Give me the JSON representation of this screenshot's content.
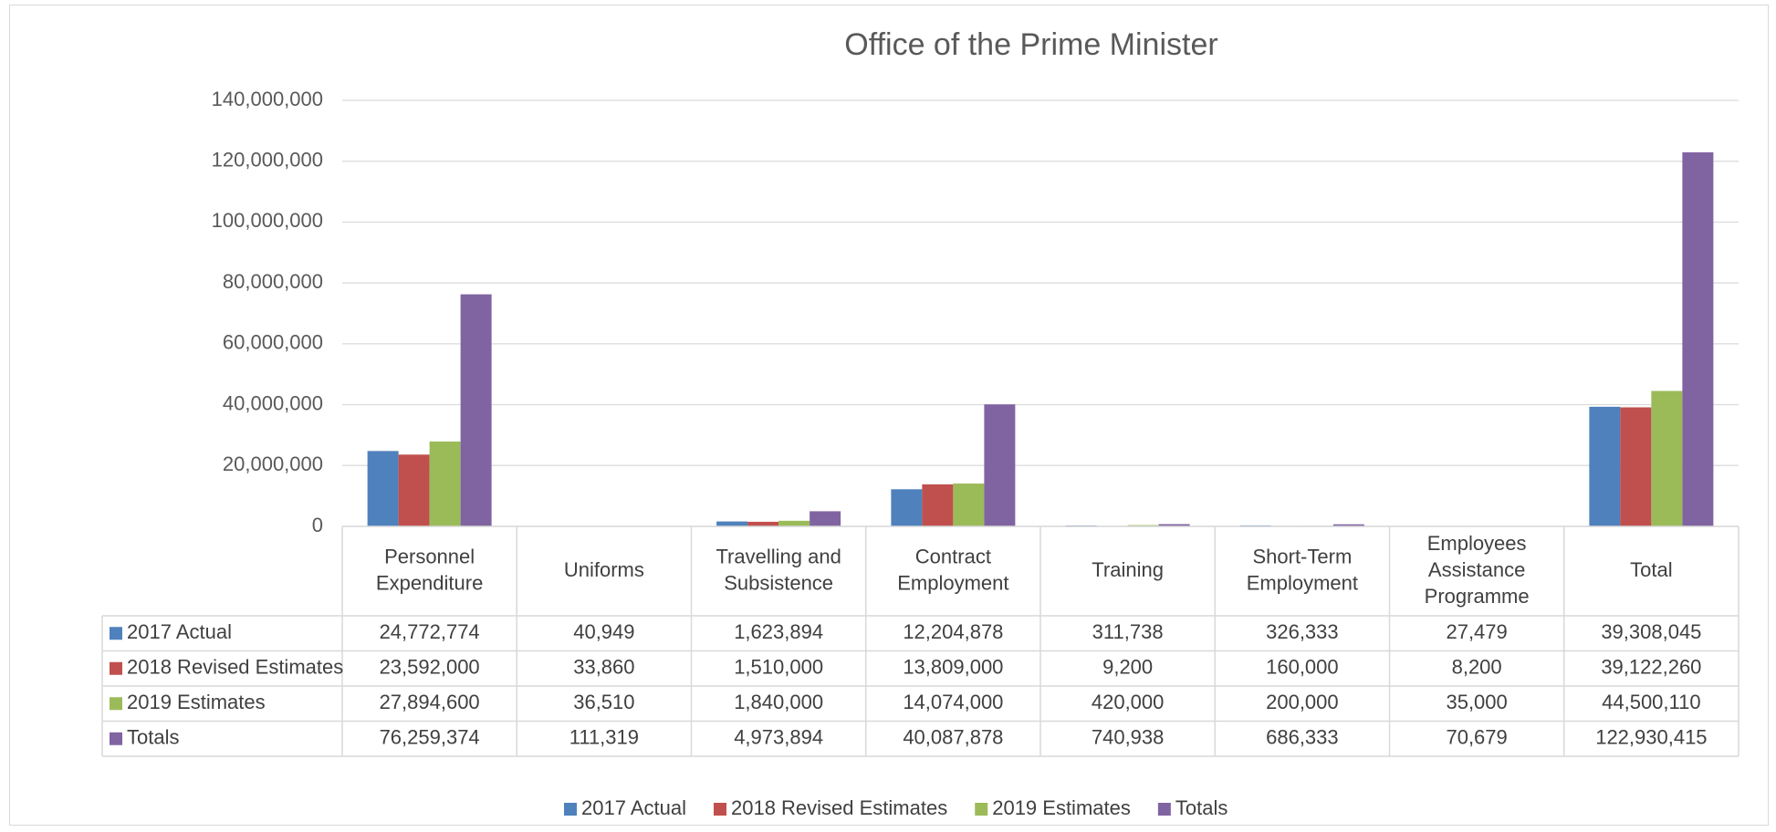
{
  "chart_data": {
    "type": "bar",
    "title": "Office of the Prime Minister",
    "categories": [
      [
        "Personnel",
        "Expenditure"
      ],
      [
        "Uniforms"
      ],
      [
        "Travelling and",
        "Subsistence"
      ],
      [
        "Contract",
        "Employment"
      ],
      [
        "Training"
      ],
      [
        "Short-Term",
        "Employment"
      ],
      [
        "Employees",
        "Assistance",
        "Programme"
      ],
      [
        "Total"
      ]
    ],
    "series": [
      {
        "name": "2017 Actual",
        "color": "#4f81bd",
        "values": [
          24772774,
          40949,
          1623894,
          12204878,
          311738,
          326333,
          27479,
          39308045
        ],
        "labels": [
          "24,772,774",
          "40,949",
          "1,623,894",
          "12,204,878",
          "311,738",
          "326,333",
          "27,479",
          "39,308,045"
        ]
      },
      {
        "name": "2018 Revised Estimates",
        "color": "#c0504d",
        "values": [
          23592000,
          33860,
          1510000,
          13809000,
          9200,
          160000,
          8200,
          39122260
        ],
        "labels": [
          "23,592,000",
          "33,860",
          "1,510,000",
          "13,809,000",
          "9,200",
          "160,000",
          "8,200",
          "39,122,260"
        ]
      },
      {
        "name": "2019 Estimates",
        "color": "#9bbb59",
        "values": [
          27894600,
          36510,
          1840000,
          14074000,
          420000,
          200000,
          35000,
          44500110
        ],
        "labels": [
          "27,894,600",
          "36,510",
          "1,840,000",
          "14,074,000",
          "420,000",
          "200,000",
          "35,000",
          "44,500,110"
        ]
      },
      {
        "name": "Totals",
        "color": "#8064a2",
        "values": [
          76259374,
          111319,
          4973894,
          40087878,
          740938,
          686333,
          70679,
          122930415
        ],
        "labels": [
          "76,259,374",
          "111,319",
          "4,973,894",
          "40,087,878",
          "740,938",
          "686,333",
          "70,679",
          "122,930,415"
        ]
      }
    ],
    "ylim": [
      0,
      140000000
    ],
    "yticks": [
      0,
      20000000,
      40000000,
      60000000,
      80000000,
      100000000,
      120000000,
      140000000
    ],
    "ytick_labels": [
      "0",
      "20,000,000",
      "40,000,000",
      "60,000,000",
      "80,000,000",
      "100,000,000",
      "120,000,000",
      "140,000,000"
    ],
    "grid": true,
    "data_table": true,
    "legend_position": "bottom"
  }
}
